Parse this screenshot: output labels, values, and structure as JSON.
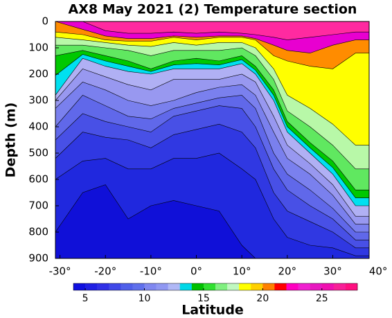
{
  "chart_data": {
    "type": "contourf",
    "title": "AX8 May 2021 (2) Temperature section",
    "xlabel": "Latitude",
    "ylabel": "Depth (m)",
    "x": [
      -31,
      -25,
      -20,
      -15,
      -10,
      -5,
      0,
      5,
      10,
      13,
      17,
      20,
      25,
      30,
      35,
      38
    ],
    "xlim": [
      -31,
      38
    ],
    "ylim": [
      0,
      900
    ],
    "y_inverted": true,
    "xticks": [
      {
        "value": -30,
        "label": "-30°"
      },
      {
        "value": -20,
        "label": "-20°"
      },
      {
        "value": -10,
        "label": "-10°"
      },
      {
        "value": 0,
        "label": "0°"
      },
      {
        "value": 10,
        "label": "10°"
      },
      {
        "value": 20,
        "label": "20°"
      },
      {
        "value": 30,
        "label": "30°"
      },
      {
        "value": 40,
        "label": "40°"
      }
    ],
    "yticks": [
      0,
      100,
      200,
      300,
      400,
      500,
      600,
      700,
      800,
      900
    ],
    "series": [
      {
        "level": 28,
        "color": "#ff2aa0",
        "values": [
          0,
          0,
          0,
          0,
          0,
          0,
          0,
          0,
          0,
          0,
          0,
          0,
          0,
          0,
          0,
          0
        ]
      },
      {
        "level": 24,
        "color": "#e800d0",
        "values": [
          0,
          0,
          35,
          45,
          45,
          40,
          45,
          40,
          45,
          50,
          60,
          70,
          60,
          50,
          40,
          40
        ]
      },
      {
        "level": 22,
        "color": "#ff8c00",
        "values": [
          0,
          30,
          55,
          65,
          65,
          55,
          60,
          55,
          55,
          65,
          90,
          110,
          120,
          90,
          70,
          70
        ]
      },
      {
        "level": 20,
        "color": "#ffff00",
        "values": [
          40,
          50,
          70,
          75,
          75,
          60,
          70,
          60,
          60,
          70,
          130,
          150,
          170,
          180,
          120,
          120
        ]
      },
      {
        "level": 18,
        "color": "#b8f8a8",
        "values": [
          60,
          70,
          80,
          90,
          95,
          80,
          90,
          80,
          80,
          100,
          180,
          280,
          330,
          390,
          470,
          470
        ]
      },
      {
        "level": 16,
        "color": "#60e860",
        "values": [
          90,
          90,
          100,
          110,
          130,
          110,
          110,
          110,
          100,
          130,
          220,
          340,
          400,
          470,
          560,
          560
        ]
      },
      {
        "level": 14,
        "color": "#00c800",
        "values": [
          130,
          110,
          130,
          150,
          180,
          150,
          140,
          150,
          130,
          170,
          260,
          380,
          460,
          530,
          640,
          640
        ]
      },
      {
        "level": 13,
        "color": "#00e0f0",
        "values": [
          205,
          125,
          150,
          170,
          190,
          165,
          160,
          165,
          145,
          185,
          280,
          400,
          480,
          555,
          670,
          670
        ]
      },
      {
        "level": 12,
        "color": "#b0b0f4",
        "values": [
          280,
          140,
          170,
          190,
          200,
          180,
          180,
          180,
          160,
          200,
          300,
          420,
          500,
          580,
          700,
          700
        ]
      },
      {
        "level": 11,
        "color": "#9898f0",
        "values": [
          300,
          180,
          210,
          240,
          260,
          220,
          220,
          220,
          200,
          230,
          360,
          470,
          540,
          620,
          740,
          740
        ]
      },
      {
        "level": 10,
        "color": "#7a80ee",
        "values": [
          330,
          230,
          260,
          300,
          320,
          300,
          270,
          250,
          240,
          280,
          420,
          520,
          580,
          660,
          770,
          770
        ]
      },
      {
        "level": 9,
        "color": "#6068ea",
        "values": [
          400,
          280,
          320,
          360,
          370,
          330,
          310,
          290,
          280,
          330,
          500,
          580,
          640,
          710,
          800,
          800
        ]
      },
      {
        "level": 8,
        "color": "#4850e6",
        "values": [
          450,
          350,
          380,
          400,
          420,
          360,
          340,
          320,
          330,
          400,
          560,
          640,
          700,
          750,
          830,
          830
        ]
      },
      {
        "level": 7,
        "color": "#3038e2",
        "values": [
          520,
          420,
          440,
          450,
          480,
          430,
          410,
          390,
          420,
          480,
          650,
          720,
          760,
          800,
          860,
          860
        ]
      },
      {
        "level": 6,
        "color": "#2028de",
        "values": [
          600,
          530,
          520,
          560,
          560,
          520,
          520,
          500,
          560,
          600,
          750,
          820,
          850,
          860,
          890,
          890
        ]
      },
      {
        "level": 5,
        "color": "#1010d8",
        "values": [
          800,
          650,
          620,
          750,
          700,
          680,
          700,
          720,
          850,
          900,
          900,
          900,
          900,
          900,
          900,
          900
        ]
      }
    ],
    "colorbar": {
      "lim": [
        4,
        28
      ],
      "ticks": [
        5,
        10,
        15,
        20,
        25
      ],
      "colors": [
        "#1010e0",
        "#2020e4",
        "#3030e6",
        "#4048e8",
        "#5060ea",
        "#6070ec",
        "#8088f0",
        "#9098f2",
        "#b0b8f6",
        "#00d8e8",
        "#00c000",
        "#30e030",
        "#80f080",
        "#c0f8c0",
        "#ffff00",
        "#ffd000",
        "#ff8000",
        "#ff0000",
        "#ff00c0",
        "#f020d0",
        "#e818c0",
        "#f010b0",
        "#f82098",
        "#ff1080"
      ]
    }
  }
}
